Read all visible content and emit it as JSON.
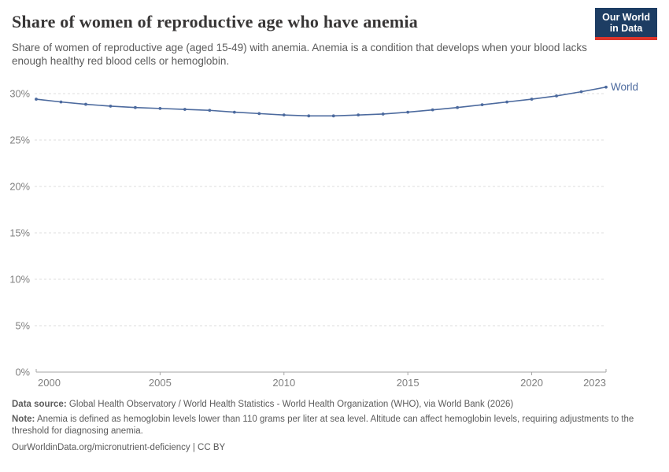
{
  "header": {
    "title": "Share of women of reproductive age who have anemia",
    "subtitle": "Share of women of reproductive age (aged 15-49) with anemia. Anemia is a condition that develops when your blood lacks enough healthy red blood cells or hemoglobin.",
    "logo_line1": "Our World",
    "logo_line2": "in Data"
  },
  "chart_data": {
    "type": "line",
    "title": "Share of women of reproductive age who have anemia",
    "xlabel": "",
    "ylabel": "",
    "x": [
      2000,
      2001,
      2002,
      2003,
      2004,
      2005,
      2006,
      2007,
      2008,
      2009,
      2010,
      2011,
      2012,
      2013,
      2014,
      2015,
      2016,
      2017,
      2018,
      2019,
      2020,
      2021,
      2022,
      2023
    ],
    "series": [
      {
        "name": "World",
        "color": "#4c6a9e",
        "values": [
          29.4,
          29.1,
          28.85,
          28.65,
          28.5,
          28.4,
          28.3,
          28.2,
          28.0,
          27.85,
          27.7,
          27.6,
          27.6,
          27.7,
          27.8,
          28.0,
          28.25,
          28.5,
          28.8,
          29.1,
          29.4,
          29.75,
          30.2,
          30.7
        ]
      }
    ],
    "xlim": [
      2000,
      2023
    ],
    "ylim": [
      0,
      32
    ],
    "xticks": [
      2000,
      2005,
      2010,
      2015,
      2020,
      2023
    ],
    "yticks": [
      0,
      5,
      10,
      15,
      20,
      25,
      30
    ],
    "ytick_suffix": "%",
    "grid": "horizontal-dashed",
    "legend_position": "end-of-line",
    "end_label": "World"
  },
  "footer": {
    "datasource_label": "Data source:",
    "datasource_text": "Global Health Observatory / World Health Statistics - World Health Organization (WHO), via World Bank (2026)",
    "note_label": "Note:",
    "note_text": "Anemia is defined as hemoglobin levels lower than 110 grams per liter at sea level. Altitude can affect hemoglobin levels, requiring adjustments to the threshold for diagnosing anemia.",
    "license": "OurWorldinData.org/micronutrient-deficiency | CC BY"
  },
  "colors": {
    "line": "#4c6a9e",
    "grid": "#dddddd",
    "axis": "#a5a5a5",
    "tick_label": "#7f7f7f",
    "title": "#383636",
    "subtitle": "#5b5b5b",
    "footer": "#5b5b5b",
    "logo_bg": "#1d3d63",
    "logo_stripe": "#dc352b",
    "background": "#ffffff"
  }
}
